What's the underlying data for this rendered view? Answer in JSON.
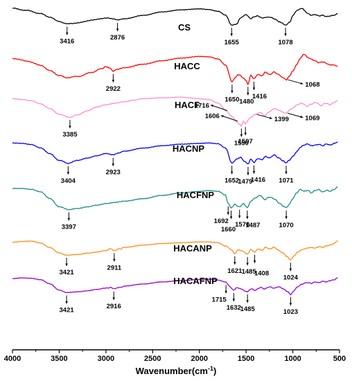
{
  "chart_data": {
    "type": "line",
    "title": "",
    "xlabel": "Wavenumber(cm",
    "xlabel_sup": "-1",
    "xlabel_close": ")",
    "ylabel": "",
    "xlim": [
      4000,
      500
    ],
    "x_reversed": true,
    "grid": false,
    "legend": "inline labels",
    "x_ticks": [
      "4000",
      "3500",
      "3000",
      "2500",
      "2000",
      "1500",
      "1000",
      "500"
    ],
    "x_tick_values": [
      4000,
      3500,
      3000,
      2500,
      2000,
      1500,
      1000,
      500
    ],
    "series": [
      {
        "name": "CS",
        "color": "#000000",
        "x": [
          4000,
          3850,
          3700,
          3600,
          3500,
          3416,
          3300,
          3150,
          3000,
          2930,
          2876,
          2800,
          2600,
          2400,
          2200,
          2000,
          1900,
          1800,
          1720,
          1655,
          1600,
          1560,
          1500,
          1450,
          1420,
          1380,
          1320,
          1250,
          1200,
          1150,
          1120,
          1078,
          1030,
          1000,
          950,
          900,
          870,
          840,
          800,
          760,
          720,
          680,
          640,
          600,
          560,
          520
        ],
        "y": [
          1.0,
          0.94,
          0.85,
          0.74,
          0.62,
          0.55,
          0.58,
          0.66,
          0.72,
          0.7,
          0.66,
          0.7,
          0.8,
          0.9,
          0.96,
          0.99,
          0.97,
          0.92,
          0.8,
          0.52,
          0.55,
          0.72,
          0.82,
          0.7,
          0.75,
          0.78,
          0.72,
          0.75,
          0.7,
          0.62,
          0.58,
          0.52,
          0.6,
          0.8,
          0.95,
          1.0,
          0.92,
          0.85,
          0.8,
          0.82,
          0.78,
          0.8,
          0.76,
          0.78,
          0.8,
          0.84
        ]
      },
      {
        "name": "HACC",
        "color": "#ff0000",
        "x": [
          4000,
          3850,
          3700,
          3600,
          3500,
          3416,
          3300,
          3150,
          3050,
          3000,
          2960,
          2922,
          2880,
          2800,
          2600,
          2400,
          2200,
          2000,
          1900,
          1800,
          1720,
          1650,
          1620,
          1580,
          1530,
          1500,
          1480,
          1450,
          1416,
          1380,
          1330,
          1290,
          1250,
          1200,
          1150,
          1100,
          1068,
          1040,
          1000,
          960,
          920,
          880,
          840,
          800,
          760,
          720,
          680,
          620,
          560,
          520
        ],
        "y": [
          0.9,
          0.84,
          0.74,
          0.62,
          0.5,
          0.45,
          0.48,
          0.57,
          0.66,
          0.7,
          0.68,
          0.6,
          0.64,
          0.68,
          0.76,
          0.84,
          0.9,
          0.94,
          0.93,
          0.88,
          0.75,
          0.35,
          0.45,
          0.52,
          0.45,
          0.38,
          0.3,
          0.5,
          0.42,
          0.52,
          0.5,
          0.58,
          0.52,
          0.58,
          0.52,
          0.44,
          0.4,
          0.48,
          0.6,
          0.75,
          0.9,
          1.0,
          0.92,
          0.88,
          0.84,
          0.8,
          0.82,
          0.76,
          0.74,
          0.72
        ]
      },
      {
        "name": "HACF",
        "color": "#ff8ccf",
        "x": [
          4000,
          3900,
          3800,
          3700,
          3600,
          3500,
          3385,
          3300,
          3200,
          3100,
          3000,
          2900,
          2800,
          2700,
          2600,
          2400,
          2200,
          2100,
          2000,
          1900,
          1800,
          1716,
          1650,
          1606,
          1580,
          1550,
          1530,
          1507,
          1480,
          1450,
          1399,
          1350,
          1300,
          1250,
          1200,
          1150,
          1100,
          1069,
          1040,
          1000,
          950,
          900,
          850,
          800,
          750,
          700,
          650,
          600,
          560,
          520
        ],
        "y": [
          0.95,
          0.93,
          0.9,
          0.82,
          0.7,
          0.55,
          0.48,
          0.54,
          0.64,
          0.74,
          0.8,
          0.84,
          0.88,
          0.92,
          0.96,
          0.98,
          1.0,
          0.98,
          0.96,
          0.94,
          0.85,
          0.65,
          0.5,
          0.38,
          0.3,
          0.26,
          0.38,
          0.3,
          0.4,
          0.48,
          0.55,
          0.6,
          0.52,
          0.62,
          0.7,
          0.66,
          0.6,
          0.58,
          0.66,
          0.72,
          0.8,
          0.84,
          0.76,
          0.82,
          0.86,
          0.78,
          0.84,
          0.8,
          0.86,
          0.9
        ]
      },
      {
        "name": "HACNP",
        "color": "#0000ff",
        "x": [
          4000,
          3900,
          3800,
          3700,
          3600,
          3500,
          3404,
          3300,
          3200,
          3100,
          3000,
          2923,
          2860,
          2800,
          2600,
          2400,
          2200,
          2000,
          1900,
          1800,
          1720,
          1652,
          1600,
          1560,
          1520,
          1479,
          1450,
          1416,
          1380,
          1330,
          1290,
          1250,
          1200,
          1150,
          1100,
          1071,
          1040,
          1000,
          960,
          920,
          880,
          840,
          800,
          760,
          720,
          680,
          640,
          600,
          560,
          520
        ],
        "y": [
          0.98,
          0.97,
          0.94,
          0.85,
          0.7,
          0.52,
          0.44,
          0.52,
          0.58,
          0.64,
          0.7,
          0.66,
          0.72,
          0.76,
          0.84,
          0.9,
          0.94,
          0.96,
          0.97,
          0.95,
          0.85,
          0.45,
          0.55,
          0.6,
          0.5,
          0.42,
          0.55,
          0.46,
          0.56,
          0.54,
          0.62,
          0.58,
          0.66,
          0.58,
          0.5,
          0.45,
          0.52,
          0.62,
          0.74,
          0.86,
          0.92,
          0.95,
          0.9,
          0.92,
          0.94,
          0.9,
          0.95,
          0.92,
          0.96,
          1.0
        ]
      },
      {
        "name": "HACFNP",
        "color": "#1a8c84",
        "x": [
          4000,
          3900,
          3800,
          3700,
          3600,
          3500,
          3397,
          3300,
          3200,
          3100,
          3000,
          2900,
          2800,
          2600,
          2400,
          2200,
          2000,
          1900,
          1800,
          1720,
          1692,
          1660,
          1620,
          1570,
          1530,
          1487,
          1450,
          1400,
          1350,
          1300,
          1250,
          1200,
          1150,
          1100,
          1070,
          1040,
          1000,
          960,
          920,
          880,
          840,
          800,
          760,
          720,
          680,
          640,
          600,
          560,
          520
        ],
        "y": [
          0.96,
          0.96,
          0.94,
          0.88,
          0.72,
          0.52,
          0.46,
          0.48,
          0.52,
          0.56,
          0.6,
          0.63,
          0.66,
          0.72,
          0.8,
          0.86,
          0.9,
          0.92,
          0.9,
          0.8,
          0.6,
          0.5,
          0.58,
          0.52,
          0.6,
          0.5,
          0.66,
          0.74,
          0.8,
          0.7,
          0.76,
          0.72,
          0.62,
          0.54,
          0.5,
          0.58,
          0.72,
          0.86,
          0.94,
          0.9,
          0.92,
          0.86,
          0.92,
          0.94,
          0.88,
          0.92,
          0.9,
          0.94,
          1.0
        ]
      },
      {
        "name": "HACANP",
        "color": "#ff8c1a",
        "x": [
          4000,
          3900,
          3800,
          3700,
          3600,
          3500,
          3421,
          3300,
          3200,
          3100,
          3000,
          2950,
          2911,
          2850,
          2800,
          2600,
          2400,
          2200,
          2000,
          1900,
          1800,
          1720,
          1660,
          1621,
          1580,
          1540,
          1485,
          1450,
          1408,
          1370,
          1330,
          1290,
          1250,
          1200,
          1150,
          1100,
          1060,
          1024,
          990,
          950,
          900,
          850,
          800,
          760,
          720,
          680,
          640,
          600,
          560,
          520
        ],
        "y": [
          0.92,
          0.94,
          0.95,
          0.9,
          0.78,
          0.64,
          0.58,
          0.6,
          0.63,
          0.66,
          0.7,
          0.74,
          0.7,
          0.74,
          0.78,
          0.84,
          0.88,
          0.9,
          0.92,
          0.92,
          0.9,
          0.82,
          0.72,
          0.62,
          0.72,
          0.68,
          0.6,
          0.72,
          0.66,
          0.74,
          0.7,
          0.78,
          0.74,
          0.78,
          0.7,
          0.62,
          0.54,
          0.45,
          0.55,
          0.65,
          0.72,
          0.76,
          0.78,
          0.76,
          0.8,
          0.78,
          0.82,
          0.84,
          0.88,
          0.96
        ]
      },
      {
        "name": "HACAFNP",
        "color": "#9400d3",
        "x": [
          4000,
          3900,
          3800,
          3700,
          3600,
          3500,
          3421,
          3300,
          3200,
          3100,
          3000,
          2950,
          2916,
          2850,
          2800,
          2600,
          2400,
          2200,
          2000,
          1900,
          1800,
          1715,
          1680,
          1632,
          1600,
          1560,
          1485,
          1450,
          1400,
          1350,
          1300,
          1250,
          1200,
          1150,
          1100,
          1060,
          1023,
          990,
          950,
          900,
          850,
          800,
          760,
          720,
          680,
          640,
          600,
          560,
          520
        ],
        "y": [
          0.95,
          0.97,
          0.96,
          0.92,
          0.8,
          0.62,
          0.55,
          0.57,
          0.6,
          0.64,
          0.68,
          0.7,
          0.66,
          0.7,
          0.74,
          0.8,
          0.86,
          0.9,
          0.93,
          0.94,
          0.92,
          0.85,
          0.74,
          0.62,
          0.7,
          0.66,
          0.58,
          0.66,
          0.62,
          0.7,
          0.66,
          0.72,
          0.68,
          0.72,
          0.66,
          0.58,
          0.5,
          0.6,
          0.72,
          0.8,
          0.84,
          0.82,
          0.86,
          0.84,
          0.88,
          0.86,
          0.9,
          0.92,
          0.98
        ]
      }
    ],
    "annotations": [
      {
        "series": "CS",
        "text": "3416",
        "x": 3416,
        "dir": "down"
      },
      {
        "series": "CS",
        "text": "2876",
        "x": 2876,
        "dir": "down"
      },
      {
        "series": "CS",
        "text": "1655",
        "x": 1655,
        "dir": "down"
      },
      {
        "series": "CS",
        "text": "1078",
        "x": 1078,
        "dir": "down"
      },
      {
        "series": "HACC",
        "text": "2922",
        "x": 2922,
        "dir": "down"
      },
      {
        "series": "HACC",
        "text": "1650",
        "x": 1650,
        "dir": "down"
      },
      {
        "series": "HACC",
        "text": "1480",
        "x": 1480,
        "dir": "down"
      },
      {
        "series": "HACC",
        "text": "1416",
        "x": 1416,
        "dir": "down"
      },
      {
        "series": "HACC",
        "text": "1068",
        "x": 1068,
        "dir": "right"
      },
      {
        "series": "HACF",
        "text": "3385",
        "x": 3385,
        "dir": "down"
      },
      {
        "series": "HACF",
        "text": "1716",
        "x": 1716,
        "dir": "left"
      },
      {
        "series": "HACF",
        "text": "1606",
        "x": 1606,
        "dir": "left"
      },
      {
        "series": "HACF",
        "text": "1550",
        "x": 1550,
        "dir": "down"
      },
      {
        "series": "HACF",
        "text": "1507",
        "x": 1507,
        "dir": "down"
      },
      {
        "series": "HACF",
        "text": "1399",
        "x": 1399,
        "dir": "right"
      },
      {
        "series": "HACF",
        "text": "1069",
        "x": 1069,
        "dir": "right"
      },
      {
        "series": "HACNP",
        "text": "3404",
        "x": 3404,
        "dir": "down"
      },
      {
        "series": "HACNP",
        "text": "2923",
        "x": 2923,
        "dir": "down"
      },
      {
        "series": "HACNP",
        "text": "1652",
        "x": 1652,
        "dir": "down"
      },
      {
        "series": "HACNP",
        "text": "1479",
        "x": 1479,
        "dir": "down"
      },
      {
        "series": "HACNP",
        "text": "1416",
        "x": 1416,
        "dir": "down"
      },
      {
        "series": "HACNP",
        "text": "1071",
        "x": 1071,
        "dir": "down"
      },
      {
        "series": "HACFNP",
        "text": "3397",
        "x": 3397,
        "dir": "down"
      },
      {
        "series": "HACFNP",
        "text": "1692",
        "x": 1692,
        "dir": "down"
      },
      {
        "series": "HACFNP",
        "text": "1660",
        "x": 1660,
        "dir": "down"
      },
      {
        "series": "HACFNP",
        "text": "1570",
        "x": 1570,
        "dir": "down"
      },
      {
        "series": "HACFNP",
        "text": "1487",
        "x": 1487,
        "dir": "down"
      },
      {
        "series": "HACFNP",
        "text": "1070",
        "x": 1070,
        "dir": "down"
      },
      {
        "series": "HACANP",
        "text": "3421",
        "x": 3421,
        "dir": "down"
      },
      {
        "series": "HACANP",
        "text": "2911",
        "x": 2911,
        "dir": "down"
      },
      {
        "series": "HACANP",
        "text": "1621",
        "x": 1621,
        "dir": "down"
      },
      {
        "series": "HACANP",
        "text": "1485",
        "x": 1485,
        "dir": "down"
      },
      {
        "series": "HACANP",
        "text": "1408",
        "x": 1408,
        "dir": "down"
      },
      {
        "series": "HACANP",
        "text": "1024",
        "x": 1024,
        "dir": "down"
      },
      {
        "series": "HACAFNP",
        "text": "3421",
        "x": 3421,
        "dir": "down"
      },
      {
        "series": "HACAFNP",
        "text": "2916",
        "x": 2916,
        "dir": "down"
      },
      {
        "series": "HACAFNP",
        "text": "1715",
        "x": 1715,
        "dir": "down"
      },
      {
        "series": "HACAFNP",
        "text": "1632",
        "x": 1632,
        "dir": "down"
      },
      {
        "series": "HACAFNP",
        "text": "1485",
        "x": 1485,
        "dir": "down"
      },
      {
        "series": "HACAFNP",
        "text": "1023",
        "x": 1023,
        "dir": "down"
      }
    ]
  }
}
